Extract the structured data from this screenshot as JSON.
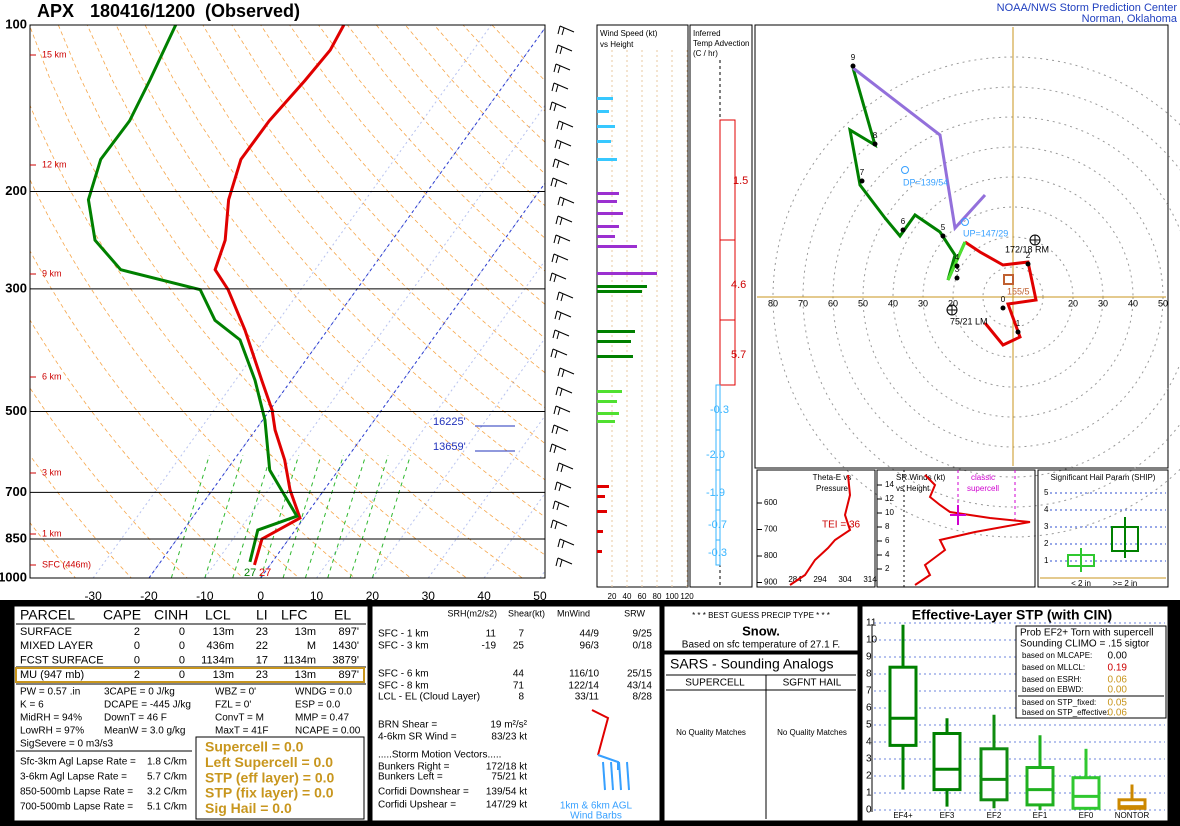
{
  "header": {
    "station": "APX",
    "time": "180416/1200",
    "status": "(Observed)",
    "org": "NOAA/NWS Storm Prediction Center",
    "place": "Norman, Oklahoma"
  },
  "chart_data": [
    {
      "type": "skewt",
      "xlim": [
        -41.3,
        50.9
      ],
      "ylim": [
        1000,
        100
      ],
      "log_y": true,
      "xticks": [
        -30,
        -20,
        -10,
        0,
        10,
        20,
        30,
        40,
        50
      ],
      "yticks": [
        100,
        200,
        300,
        500,
        700,
        850,
        1000
      ],
      "series": [
        {
          "color": "#e00000",
          "y": [
            947,
            850,
            779,
            693,
            612,
            540,
            497,
            439,
            356,
            301,
            277,
            245,
            207,
            175,
            149,
            126,
            111,
            100
          ],
          "values": [
            -2.8,
            -4.8,
            -0.7,
            -6.1,
            -10.9,
            -16.5,
            -19.6,
            -25.3,
            -34.8,
            -43,
            -47.9,
            -49.9,
            -54.5,
            -57.5,
            -57.4,
            -56.2,
            -55.6,
            -56.4
          ]
        },
        {
          "color": "#008000",
          "y": [
            935,
            819,
            773,
            638,
            518,
            439,
            371,
            342,
            301,
            277,
            245,
            207,
            175,
            149,
            126,
            100
          ],
          "values": [
            -4.0,
            -6.7,
            -1.5,
            -12.3,
            -19.6,
            -26.5,
            -34.4,
            -41.4,
            -48,
            -64.8,
            -73.2,
            -79.6,
            -82.6,
            -82.4,
            -84,
            -86.5
          ]
        }
      ],
      "height_labels": [
        "15 km",
        "12 km",
        "9 km",
        "6 km",
        "3 km",
        "1 km",
        "SFC (446m)"
      ],
      "annotations": [
        "16225'",
        "13659'"
      ],
      "surface_labels": [
        "27",
        "27"
      ]
    },
    {
      "type": "box",
      "title": "Effective-Layer STP (with CIN)",
      "categories": [
        "EF4+",
        "EF3",
        "EF2",
        "EF1",
        "EF0",
        "NONTOR"
      ],
      "ylim": [
        0,
        11
      ],
      "yticks": [
        0,
        1,
        2,
        3,
        4,
        5,
        6,
        7,
        8,
        9,
        10,
        11
      ],
      "whisker_low": [
        1.2,
        0.2,
        0.1,
        0,
        0,
        0
      ],
      "q1": [
        3.8,
        1.2,
        0.6,
        0.3,
        0.1,
        0.1
      ],
      "median": [
        5.4,
        2.4,
        1.8,
        1.2,
        0.8,
        0.2
      ],
      "q3": [
        8.4,
        4.5,
        3.6,
        2.5,
        1.9,
        0.6
      ],
      "whisker_high": [
        10.9,
        5.4,
        5.6,
        4.4,
        3.6,
        1.5
      ],
      "colors": [
        "#008000",
        "#008000",
        "#108c10",
        "#20b020",
        "#30c830",
        "#cc8800"
      ]
    }
  ],
  "wind_speed": {
    "title": "Wind Speed (kt)",
    "subtitle": "vs Height",
    "ticks": [
      20,
      40,
      60,
      80,
      100,
      120
    ]
  },
  "temp_advection": {
    "title": [
      "Inferred",
      "Temp Advection",
      "(C / hr)"
    ],
    "labels": [
      "1.5",
      "4.6",
      "5.7",
      "-0.3",
      "-2.0",
      "-1.9",
      "-0.7",
      "-0.3"
    ]
  },
  "hodograph": {
    "ticks": [
      {
        "value": -80,
        "label": "80"
      },
      {
        "value": -70,
        "label": "70"
      },
      {
        "value": -60,
        "label": "60"
      },
      {
        "value": -50,
        "label": "50"
      },
      {
        "value": -40,
        "label": "40"
      },
      {
        "value": -30,
        "label": "30"
      },
      {
        "value": -20,
        "label": "20"
      },
      20,
      30,
      40,
      50
    ],
    "heights": [
      "0",
      "1",
      "2",
      "3",
      "4",
      "5",
      "6",
      "7",
      "8",
      "9"
    ],
    "labels": [
      "DP=139/54",
      "UP=147/29",
      "172/18 RM",
      "75/21 LM",
      "155/5"
    ]
  },
  "theta_e": {
    "title": [
      "Theta-E vs",
      "Pressure"
    ],
    "yticks": [
      600,
      700,
      800,
      900
    ],
    "xticks": [
      284,
      294,
      304,
      314
    ],
    "tei": "TEI = 36"
  },
  "sr_winds": {
    "title": [
      "SR Winds (kt)",
      "vs Height"
    ],
    "yticks": [
      2,
      4,
      6,
      8,
      10,
      12,
      14
    ],
    "labels": [
      "classic",
      "supercell"
    ]
  },
  "ship": {
    "title": "Significant Hail Param (SHIP)",
    "yticks": [
      1,
      2,
      3,
      4,
      5
    ],
    "categories": [
      "< 2 in",
      ">= 2 in"
    ]
  },
  "parcel": {
    "header": [
      "PARCEL",
      "CAPE",
      "CINH",
      "LCL",
      "LI",
      "LFC",
      "EL"
    ],
    "rows": [
      [
        "SURFACE",
        "2",
        "0",
        "13m",
        "23",
        "13m",
        "897'"
      ],
      [
        "MIXED LAYER",
        "0",
        "0",
        "436m",
        "22",
        "M",
        "1430'"
      ],
      [
        "FCST SURFACE",
        "0",
        "0",
        "1134m",
        "17",
        "1134m",
        "3879'"
      ],
      [
        "MU  (947 mb)",
        "2",
        "0",
        "13m",
        "23",
        "13m",
        "897'"
      ]
    ],
    "params": [
      [
        "PW = 0.57 .in",
        "3CAPE = 0 J/kg",
        "WBZ = 0'",
        "WNDG = 0.0"
      ],
      [
        "K = 6",
        "DCAPE = -445 J/kg",
        "FZL = 0'",
        "ESP = 0.0"
      ],
      [
        "MidRH = 94%",
        "DownT = 46 F",
        "ConvT = M",
        "MMP = 0.47"
      ],
      [
        "LowRH = 97%",
        "MeanW = 3.0 g/kg",
        "MaxT = 41F",
        "NCAPE = 0.00"
      ],
      [
        "SigSevere = 0 m3/s3"
      ]
    ],
    "lapse": [
      [
        "Sfc-3km Agl Lapse Rate =",
        "1.8 C/km"
      ],
      [
        "3-6km Agl Lapse Rate =",
        "5.7 C/km"
      ],
      [
        "850-500mb Lapse Rate =",
        "3.2 C/km"
      ],
      [
        "700-500mb Lapse Rate =",
        "5.1 C/km"
      ]
    ],
    "indices": [
      "Supercell = 0.0",
      "Left Supercell = 0.0",
      "STP (eff layer) = 0.0",
      "STP (fix layer) = 0.0",
      "Sig Hail = 0.0"
    ]
  },
  "kinematics": {
    "header": [
      "SRH(m2/s2)",
      "Shear(kt)",
      "MnWind",
      "SRW"
    ],
    "rows": [
      [
        "SFC - 1 km",
        "11",
        "7",
        "44/9",
        "9/25"
      ],
      [
        "SFC - 3 km",
        "-19",
        "25",
        "96/3",
        "0/18"
      ],
      [
        "SFC - 6 km",
        "44",
        "116/10",
        "25/15"
      ],
      [
        "SFC - 8 km",
        "71",
        "122/14",
        "43/14"
      ],
      [
        "LCL - EL (Cloud Layer)",
        "8",
        "33/11",
        "8/28"
      ]
    ],
    "extra": [
      [
        "BRN Shear =",
        "19 m²/s²"
      ],
      [
        "4-6km SR Wind =",
        "83/23 kt"
      ]
    ],
    "motion_title": ".....Storm Motion Vectors.....",
    "motion": [
      [
        "Bunkers Right =",
        "172/18 kt"
      ],
      [
        "Bunkers Left =",
        "75/21 kt"
      ],
      [
        "Corfidi Downshear =",
        "139/54 kt"
      ],
      [
        "Corfidi Upshear =",
        "147/29 kt"
      ]
    ],
    "barb_label": [
      "1km & 6km AGL",
      "Wind Barbs"
    ]
  },
  "precip": {
    "title": "* * * BEST GUESS PRECIP TYPE * * *",
    "type": "Snow.",
    "basis": "Based on sfc temperature of 27.1 F."
  },
  "sars": {
    "title": "SARS - Sounding Analogs",
    "columns": [
      "SUPERCELL",
      "SGFNT HAIL"
    ],
    "results": [
      "No Quality Matches",
      "No Quality Matches"
    ]
  },
  "stp_prob": {
    "title": [
      "Prob EF2+ Torn with supercell",
      "Sounding CLIMO = .15 sigtor"
    ],
    "rows": [
      [
        "based on MLCAPE:",
        "0.00"
      ],
      [
        "based on MLLCL:",
        "0.19"
      ],
      [
        "based on ESRH:",
        "0.06"
      ],
      [
        "based on EBWD:",
        "0.00"
      ],
      [
        "based on STP_fixed:",
        "0.05"
      ],
      [
        "based on STP_effective:",
        "0.06"
      ]
    ]
  }
}
